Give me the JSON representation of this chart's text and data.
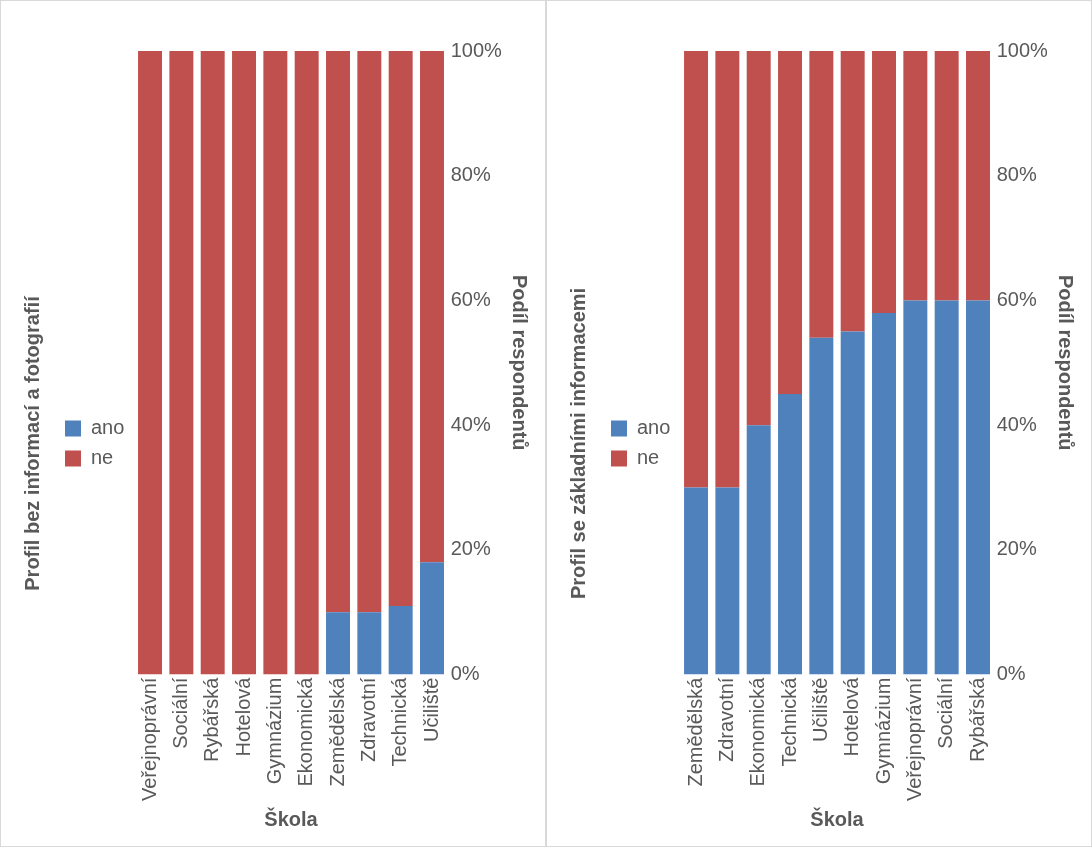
{
  "chart_data": [
    {
      "type": "bar",
      "stacked": true,
      "title": "Profil bez informací a fotografií",
      "xlabel": "Škola",
      "ylabel": "Podíl respondentů",
      "legend": "left",
      "grid": false,
      "categories": [
        "Veřejnoprávní",
        "Sociální",
        "Rybářská",
        "Hotelová",
        "Gymnázium",
        "Ekonomická",
        "Zemědělská",
        "Zdravotní",
        "Technická",
        "Učiliště"
      ],
      "series": [
        {
          "name": "ano",
          "color": "#4f81bd",
          "values": [
            0,
            0,
            0,
            0,
            0,
            0,
            10,
            10,
            11,
            18
          ]
        },
        {
          "name": "ne",
          "color": "#c0504d",
          "values": [
            100,
            100,
            100,
            100,
            100,
            100,
            90,
            90,
            89,
            82
          ]
        }
      ],
      "ylim": [
        0,
        100
      ],
      "yticks": [
        {
          "value": 0,
          "label": "0%"
        },
        {
          "value": 20,
          "label": "20%"
        },
        {
          "value": 40,
          "label": "40%"
        },
        {
          "value": 60,
          "label": "60%"
        },
        {
          "value": 80,
          "label": "80%"
        },
        {
          "value": 100,
          "label": "100%"
        }
      ]
    },
    {
      "type": "bar",
      "stacked": true,
      "title": "Profil se základními informacemi",
      "xlabel": "Škola",
      "ylabel": "Podíl respondentů",
      "legend": "left",
      "grid": false,
      "categories": [
        "Zemědělská",
        "Zdravotní",
        "Ekonomická",
        "Technická",
        "Učiliště",
        "Hotelová",
        "Gymnázium",
        "Veřejnoprávní",
        "Sociální",
        "Rybářská"
      ],
      "series": [
        {
          "name": "ano",
          "color": "#4f81bd",
          "values": [
            30,
            30,
            40,
            45,
            54,
            55,
            58,
            60,
            60,
            60
          ]
        },
        {
          "name": "ne",
          "color": "#c0504d",
          "values": [
            70,
            70,
            60,
            55,
            46,
            45,
            42,
            40,
            40,
            40
          ]
        }
      ],
      "ylim": [
        0,
        100
      ],
      "yticks": [
        {
          "value": 0,
          "label": "0%"
        },
        {
          "value": 20,
          "label": "20%"
        },
        {
          "value": 40,
          "label": "40%"
        },
        {
          "value": 60,
          "label": "60%"
        },
        {
          "value": 80,
          "label": "80%"
        },
        {
          "value": 100,
          "label": "100%"
        }
      ]
    }
  ]
}
